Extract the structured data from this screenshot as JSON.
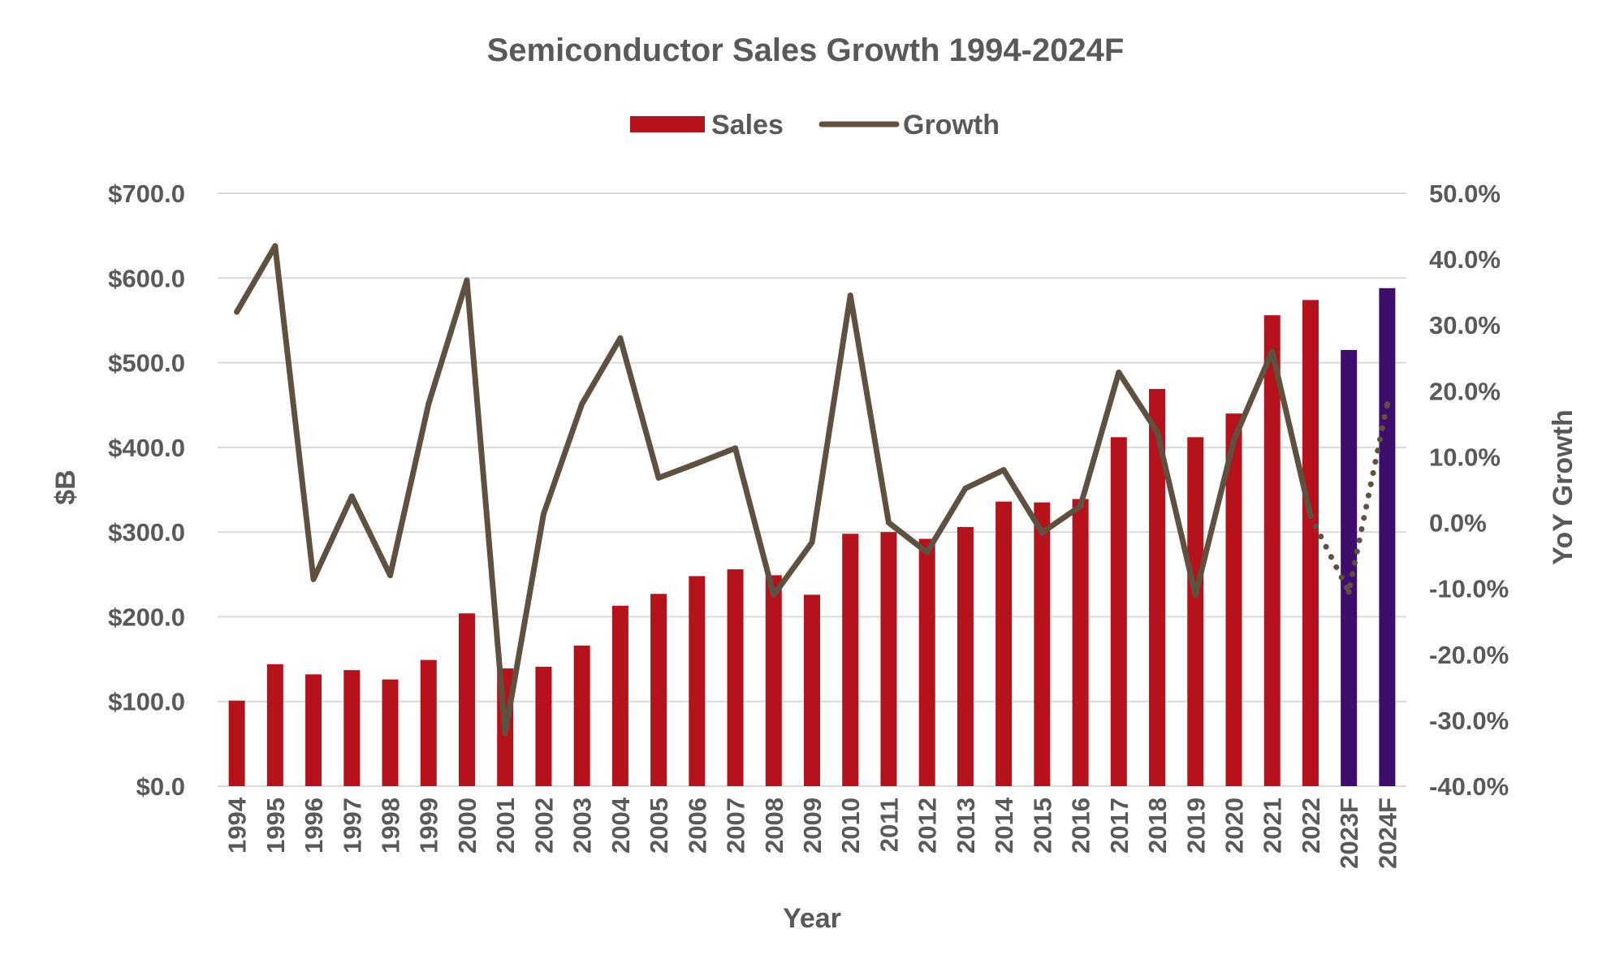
{
  "chart_data": {
    "type": "bar",
    "title": "Semiconductor Sales Growth 1994-2024F",
    "xlabel": "Year",
    "ylabel": "$B",
    "y2label": "YoY Growth",
    "legend_position": "top-center",
    "grid": true,
    "ylim": [
      0,
      700
    ],
    "y2lim": [
      -40,
      50
    ],
    "y_ticks": [
      "$0.0",
      "$100.0",
      "$200.0",
      "$300.0",
      "$400.0",
      "$500.0",
      "$600.0",
      "$700.0"
    ],
    "y2_ticks": [
      "-40.0%",
      "-30.0%",
      "-20.0%",
      "-10.0%",
      "0.0%",
      "10.0%",
      "20.0%",
      "30.0%",
      "40.0%",
      "50.0%"
    ],
    "categories": [
      "1994",
      "1995",
      "1996",
      "1997",
      "1998",
      "1999",
      "2000",
      "2001",
      "2002",
      "2003",
      "2004",
      "2005",
      "2006",
      "2007",
      "2008",
      "2009",
      "2010",
      "2011",
      "2012",
      "2013",
      "2014",
      "2015",
      "2016",
      "2017",
      "2018",
      "2019",
      "2020",
      "2021",
      "2022",
      "2023F",
      "2024F"
    ],
    "series": [
      {
        "name": "Sales",
        "type": "bar",
        "axis": "left",
        "values": [
          101,
          144,
          132,
          137,
          126,
          149,
          204,
          139,
          141,
          166,
          213,
          227,
          248,
          256,
          249,
          226,
          298,
          300,
          292,
          306,
          336,
          335,
          339,
          412,
          469,
          412,
          440,
          556,
          574,
          515,
          588
        ],
        "colors": {
          "actual": "#b5121b",
          "forecast": "#3f0d6b"
        }
      },
      {
        "name": "Growth",
        "type": "line",
        "axis": "right",
        "values": [
          32.0,
          42.0,
          -8.6,
          4.0,
          -8.0,
          18.0,
          36.8,
          -32.0,
          1.3,
          18.0,
          28.0,
          6.8,
          9.0,
          11.3,
          -11.0,
          -3.0,
          34.5,
          0.0,
          -4.5,
          5.2,
          8.0,
          -1.5,
          2.5,
          22.8,
          13.8,
          -11.0,
          12.5,
          26.0,
          1.0,
          -10.5,
          18.0
        ],
        "color": "#5f5140",
        "dotted_from_index": 28
      }
    ]
  }
}
